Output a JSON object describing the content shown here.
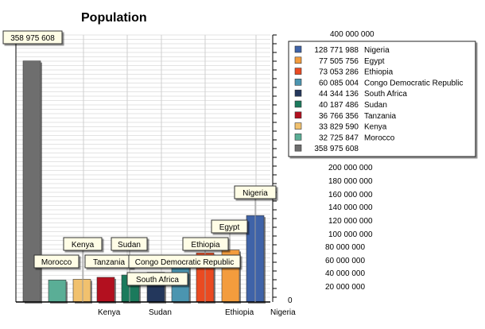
{
  "chart_data": {
    "type": "bar",
    "title": "Population",
    "xlabel": "",
    "ylabel": "",
    "ylim": [
      0,
      400000000
    ],
    "y_ticks": [
      {
        "value": 0,
        "label": "0"
      },
      {
        "value": 20000000,
        "label": "20 000 000"
      },
      {
        "value": 40000000,
        "label": "40 000 000"
      },
      {
        "value": 60000000,
        "label": "60 000 000"
      },
      {
        "value": 80000000,
        "label": "80 000 000"
      },
      {
        "value": 100000000,
        "label": "100 000 000"
      },
      {
        "value": 120000000,
        "label": "120 000 000"
      },
      {
        "value": 140000000,
        "label": "140 000 000"
      },
      {
        "value": 160000000,
        "label": "160 000 000"
      },
      {
        "value": 180000000,
        "label": "180 000 000"
      },
      {
        "value": 200000000,
        "label": "200 000 000"
      },
      {
        "value": 400000000,
        "label": "400 000 000"
      }
    ],
    "x_tick_labels": [
      "Kenya",
      "Sudan",
      "Ethiopia",
      "Nigeria"
    ],
    "grid": true,
    "legend_position": "top-right",
    "bars": [
      {
        "name": "",
        "value": 358975608,
        "value_label": "358 975 608",
        "color": "#6e6e6e"
      },
      {
        "name": "Morocco",
        "value": 32725847,
        "value_label": "32 725 847",
        "color": "#5aae96"
      },
      {
        "name": "Kenya",
        "value": 33829590,
        "value_label": "33 829 590",
        "color": "#f1c16e"
      },
      {
        "name": "Tanzania",
        "value": 36766356,
        "value_label": "36 766 356",
        "color": "#b3101f"
      },
      {
        "name": "Sudan",
        "value": 40187486,
        "value_label": "40 187 486",
        "color": "#1b7a5c"
      },
      {
        "name": "South Africa",
        "value": 44344136,
        "value_label": "44 344 136",
        "color": "#23375c"
      },
      {
        "name": "Congo Democratic Republic",
        "value": 60085004,
        "value_label": "60 085 004",
        "color": "#4b95b0"
      },
      {
        "name": "Ethiopia",
        "value": 73053286,
        "value_label": "73 053 286",
        "color": "#ea4a21"
      },
      {
        "name": "Egypt",
        "value": 77505756,
        "value_label": "77 505 756",
        "color": "#f39c3d"
      },
      {
        "name": "Nigeria",
        "value": 128771988,
        "value_label": "128 771 988",
        "color": "#3f63a8"
      }
    ],
    "legend": [
      {
        "value_label": "128 771 988",
        "name": "Nigeria",
        "color": "#3f63a8"
      },
      {
        "value_label": "77 505 756",
        "name": "Egypt",
        "color": "#f39c3d"
      },
      {
        "value_label": "73 053 286",
        "name": "Ethiopia",
        "color": "#ea4a21"
      },
      {
        "value_label": "60 085 004",
        "name": "Congo Democratic Republic",
        "color": "#4b95b0"
      },
      {
        "value_label": "44 344 136",
        "name": "South Africa",
        "color": "#23375c"
      },
      {
        "value_label": "40 187 486",
        "name": "Sudan",
        "color": "#1b7a5c"
      },
      {
        "value_label": "36 766 356",
        "name": "Tanzania",
        "color": "#b3101f"
      },
      {
        "value_label": "33 829 590",
        "name": "Kenya",
        "color": "#f1c16e"
      },
      {
        "value_label": "32 725 847",
        "name": "Morocco",
        "color": "#5aae96"
      },
      {
        "value_label": "358 975 608",
        "name": "",
        "color": "#6e6e6e"
      }
    ]
  }
}
